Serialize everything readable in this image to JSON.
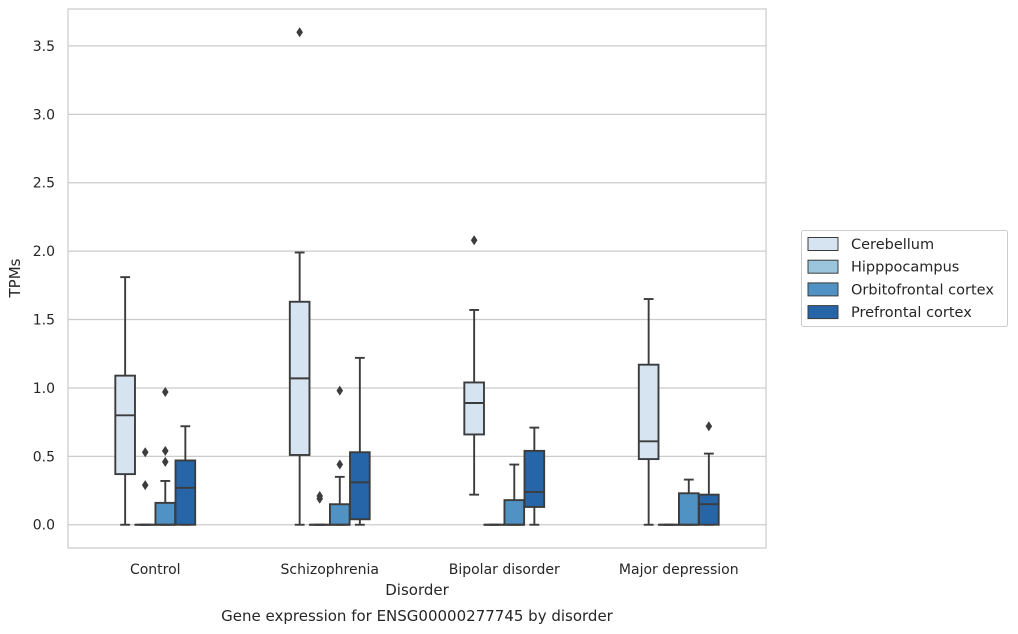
{
  "chart_data": {
    "type": "box",
    "title": "",
    "caption": "Gene expression for ENSG00000277745 by disorder",
    "xlabel": "Disorder",
    "ylabel": "TPMs",
    "ylim": [
      -0.17,
      3.77
    ],
    "yticks": [
      0.0,
      0.5,
      1.0,
      1.5,
      2.0,
      2.5,
      3.0,
      3.5
    ],
    "ytick_labels": [
      "0.0",
      "0.5",
      "1.0",
      "1.5",
      "2.0",
      "2.5",
      "3.0",
      "3.5"
    ],
    "grid": "horizontal",
    "legend_position": "right",
    "categories": [
      "Control",
      "Schizophrenia",
      "Bipolar disorder",
      "Major depression"
    ],
    "series": [
      {
        "name": "Cerebellum",
        "color": "#d6e4f2",
        "boxes": [
          {
            "whislo": 0.0,
            "q1": 0.37,
            "med": 0.8,
            "q3": 1.09,
            "whishi": 1.81,
            "fliers": []
          },
          {
            "whislo": 0.0,
            "q1": 0.51,
            "med": 1.07,
            "q3": 1.63,
            "whishi": 1.99,
            "fliers": [
              3.6
            ]
          },
          {
            "whislo": 0.22,
            "q1": 0.66,
            "med": 0.89,
            "q3": 1.04,
            "whishi": 1.57,
            "fliers": [
              2.08
            ]
          },
          {
            "whislo": 0.0,
            "q1": 0.48,
            "med": 0.61,
            "q3": 1.17,
            "whishi": 1.65,
            "fliers": []
          }
        ]
      },
      {
        "name": "Hipppocampus",
        "color": "#9bc4dd",
        "boxes": [
          {
            "whislo": 0.0,
            "q1": 0.0,
            "med": 0.0,
            "q3": 0.0,
            "whishi": 0.0,
            "fliers": [
              0.29,
              0.53
            ]
          },
          {
            "whislo": 0.0,
            "q1": 0.0,
            "med": 0.0,
            "q3": 0.0,
            "whishi": 0.0,
            "fliers": [
              0.19,
              0.21
            ]
          },
          {
            "whislo": 0.0,
            "q1": 0.0,
            "med": 0.0,
            "q3": 0.0,
            "whishi": 0.0,
            "fliers": []
          },
          {
            "whislo": 0.0,
            "q1": 0.0,
            "med": 0.0,
            "q3": 0.0,
            "whishi": 0.0,
            "fliers": []
          }
        ]
      },
      {
        "name": "Orbitofrontal cortex",
        "color": "#4f92c3",
        "boxes": [
          {
            "whislo": 0.0,
            "q1": 0.0,
            "med": 0.0,
            "q3": 0.16,
            "whishi": 0.32,
            "fliers": [
              0.46,
              0.54,
              0.97
            ]
          },
          {
            "whislo": 0.0,
            "q1": 0.0,
            "med": 0.0,
            "q3": 0.15,
            "whishi": 0.35,
            "fliers": [
              0.44,
              0.98
            ]
          },
          {
            "whislo": 0.0,
            "q1": 0.0,
            "med": 0.0,
            "q3": 0.18,
            "whishi": 0.44,
            "fliers": []
          },
          {
            "whislo": 0.0,
            "q1": 0.0,
            "med": 0.0,
            "q3": 0.23,
            "whishi": 0.33,
            "fliers": []
          }
        ]
      },
      {
        "name": "Prefrontal cortex",
        "color": "#2565a8",
        "boxes": [
          {
            "whislo": 0.0,
            "q1": 0.0,
            "med": 0.27,
            "q3": 0.47,
            "whishi": 0.72,
            "fliers": []
          },
          {
            "whislo": 0.0,
            "q1": 0.04,
            "med": 0.31,
            "q3": 0.53,
            "whishi": 1.22,
            "fliers": []
          },
          {
            "whislo": 0.0,
            "q1": 0.13,
            "med": 0.24,
            "q3": 0.54,
            "whishi": 0.71,
            "fliers": []
          },
          {
            "whislo": 0.0,
            "q1": 0.0,
            "med": 0.15,
            "q3": 0.22,
            "whishi": 0.52,
            "fliers": [
              0.72
            ]
          }
        ]
      }
    ]
  }
}
